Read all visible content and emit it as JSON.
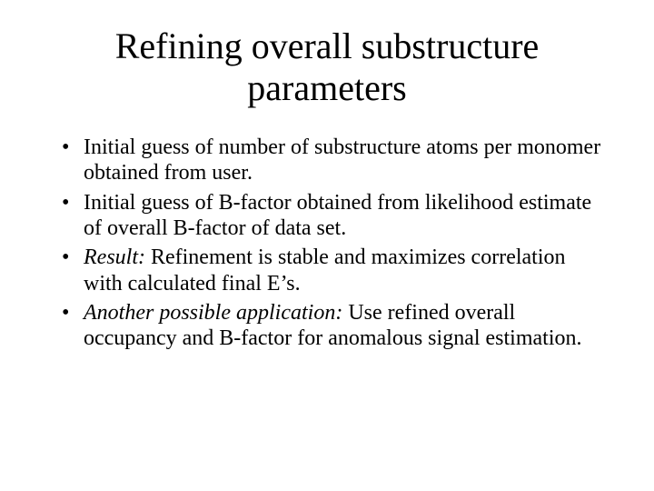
{
  "slide": {
    "title": "Refining overall substructure parameters",
    "bullets": [
      {
        "prefix": "",
        "text": "Initial guess of number of substructure atoms per monomer obtained from user."
      },
      {
        "prefix": "",
        "text": "Initial guess of B-factor obtained from likelihood estimate of overall B-factor of data set."
      },
      {
        "prefix": "Result:",
        "text": " Refinement is stable and maximizes correlation with calculated final E’s."
      },
      {
        "prefix": "Another possible application:",
        "text": " Use refined overall occupancy and B-factor for anomalous signal estimation."
      }
    ]
  },
  "style": {
    "background_color": "#ffffff",
    "text_color": "#000000",
    "font_family": "Times New Roman",
    "title_fontsize": 40,
    "body_fontsize": 24
  }
}
